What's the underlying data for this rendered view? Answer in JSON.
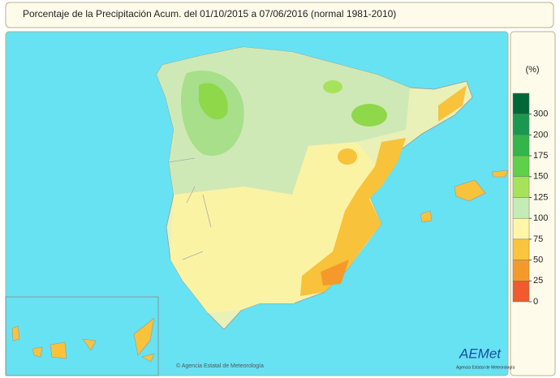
{
  "title": "Porcentaje de la Precipitación Acum. del 01/10/2015 a  07/06/2016  (normal 1981-2010)",
  "legend": {
    "unit": "(%)",
    "ticks": [
      300,
      200,
      175,
      150,
      125,
      100,
      75,
      50,
      25,
      0
    ],
    "colors": [
      "#006837",
      "#1a9850",
      "#33b54a",
      "#5fd04a",
      "#a6e35a",
      "#c4ecb6",
      "#fff6a8",
      "#f9c53c",
      "#f59a2a",
      "#f05a2d"
    ]
  },
  "credit": "© Agencia Estatal de Meteorología",
  "logo": {
    "name": "AEMet",
    "subtitle": "Agencia Estatal de Meteorología"
  }
}
